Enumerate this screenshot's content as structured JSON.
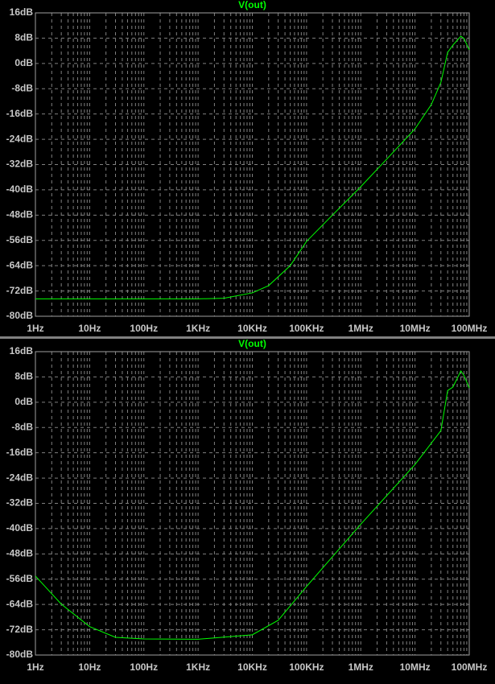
{
  "chart_data": [
    {
      "type": "line",
      "title": "V(out)",
      "log_x": true,
      "grid": true,
      "color": "#00ff00",
      "x": [
        1,
        10,
        100,
        1000,
        3000,
        10000,
        20000,
        50000,
        100000,
        300000,
        1000000,
        3000000,
        10000000,
        20000000,
        30000000,
        40000000,
        50000000,
        70000000,
        80000000,
        100000000
      ],
      "values": [
        -74.5,
        -74.5,
        -74.5,
        -74.5,
        -74.3,
        -72.6,
        -70.3,
        -64,
        -56.3,
        -48,
        -39,
        -30.3,
        -20.7,
        -13,
        -6,
        3.5,
        5.8,
        8.6,
        7.9,
        4.3
      ],
      "xlim": [
        1,
        100000000
      ],
      "xticks": [
        {
          "value": 1,
          "label": "1Hz"
        },
        {
          "value": 10,
          "label": "10Hz"
        },
        {
          "value": 100,
          "label": "100Hz"
        },
        {
          "value": 1000,
          "label": "1KHz"
        },
        {
          "value": 10000,
          "label": "10KHz"
        },
        {
          "value": 100000,
          "label": "100KHz"
        },
        {
          "value": 1000000,
          "label": "1MHz"
        },
        {
          "value": 10000000,
          "label": "10MHz"
        },
        {
          "value": 100000000,
          "label": "100MHz"
        }
      ],
      "ylim": [
        -80,
        16
      ],
      "yticks": [
        {
          "value": 16,
          "label": "16dB"
        },
        {
          "value": 8,
          "label": "8dB"
        },
        {
          "value": 0,
          "label": "0dB"
        },
        {
          "value": -8,
          "label": "-8dB"
        },
        {
          "value": -16,
          "label": "-16dB"
        },
        {
          "value": -24,
          "label": "-24dB"
        },
        {
          "value": -32,
          "label": "-32dB"
        },
        {
          "value": -40,
          "label": "-40dB"
        },
        {
          "value": -48,
          "label": "-48dB"
        },
        {
          "value": -56,
          "label": "-56dB"
        },
        {
          "value": -64,
          "label": "-64dB"
        },
        {
          "value": -72,
          "label": "-72dB"
        },
        {
          "value": -80,
          "label": "-80dB"
        }
      ]
    },
    {
      "type": "line",
      "title": "V(out)",
      "log_x": true,
      "grid": true,
      "color": "#00ff00",
      "x": [
        1,
        3,
        10,
        30,
        100,
        1000,
        10000,
        30000,
        100000,
        1000000,
        10000000,
        30000000,
        40000000,
        50000000,
        70000000,
        80000000,
        100000000
      ],
      "values": [
        -55,
        -63.9,
        -71,
        -74.4,
        -74.9,
        -75,
        -73.6,
        -69,
        -58.3,
        -38.6,
        -19.7,
        -9,
        3.7,
        4.8,
        9.9,
        8.5,
        4.5
      ],
      "xlim": [
        1,
        100000000
      ],
      "xticks": [
        {
          "value": 1,
          "label": "1Hz"
        },
        {
          "value": 10,
          "label": "10Hz"
        },
        {
          "value": 100,
          "label": "100Hz"
        },
        {
          "value": 1000,
          "label": "1KHz"
        },
        {
          "value": 10000,
          "label": "10KHz"
        },
        {
          "value": 100000,
          "label": "100KHz"
        },
        {
          "value": 1000000,
          "label": "1MHz"
        },
        {
          "value": 10000000,
          "label": "10MHz"
        },
        {
          "value": 100000000,
          "label": "100MHz"
        }
      ],
      "ylim": [
        -80,
        16
      ],
      "yticks": [
        {
          "value": 16,
          "label": "16dB"
        },
        {
          "value": 8,
          "label": "8dB"
        },
        {
          "value": 0,
          "label": "0dB"
        },
        {
          "value": -8,
          "label": "-8dB"
        },
        {
          "value": -16,
          "label": "-16dB"
        },
        {
          "value": -24,
          "label": "-24dB"
        },
        {
          "value": -32,
          "label": "-32dB"
        },
        {
          "value": -40,
          "label": "-40dB"
        },
        {
          "value": -48,
          "label": "-48dB"
        },
        {
          "value": -56,
          "label": "-56dB"
        },
        {
          "value": -64,
          "label": "-64dB"
        },
        {
          "value": -72,
          "label": "-72dB"
        },
        {
          "value": -80,
          "label": "-80dB"
        }
      ]
    }
  ]
}
